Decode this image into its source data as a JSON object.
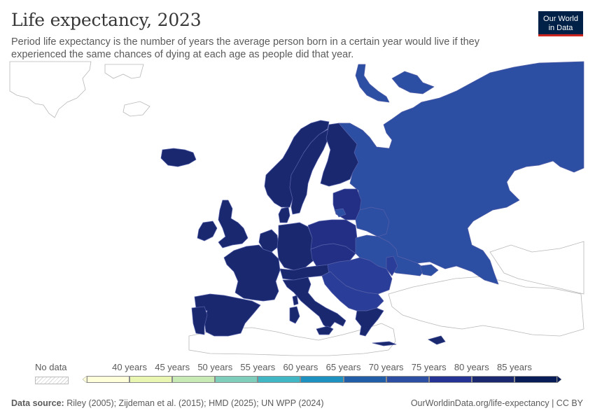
{
  "header": {
    "title": "Life expectancy, 2023",
    "subtitle": "Period life expectancy is the number of years the average person born in a certain year would live if they experienced the same chances of dying at each age as people did that year.",
    "logo_line1": "Our World",
    "logo_line2": "in Data"
  },
  "map": {
    "region": "Europe",
    "year": "2023",
    "metric": "Period life expectancy",
    "colors": {
      "very_high": "#1a2870",
      "high": "#222f85",
      "mid_high": "#2a3d98",
      "mid": "#2c4ea3",
      "no_data_stroke": "#b8b8b8",
      "border": "#3b4a8a"
    },
    "regions": [
      {
        "name": "Russia",
        "bin": "70–75 years",
        "color": "#2c4ea3"
      },
      {
        "name": "Norway",
        "bin": "80–85 years",
        "color": "#1a2870"
      },
      {
        "name": "Sweden",
        "bin": "80–85 years",
        "color": "#1a2870"
      },
      {
        "name": "Finland",
        "bin": "80–85 years",
        "color": "#1a2870"
      },
      {
        "name": "Iceland",
        "bin": "80–85 years",
        "color": "#1a2870"
      },
      {
        "name": "United Kingdom",
        "bin": "80–85 years",
        "color": "#1a2870"
      },
      {
        "name": "Ireland",
        "bin": "80–85 years",
        "color": "#1a2870"
      },
      {
        "name": "France",
        "bin": "80–85 years",
        "color": "#1a2870"
      },
      {
        "name": "Spain",
        "bin": "80–85 years",
        "color": "#1a2870"
      },
      {
        "name": "Portugal",
        "bin": "80–85 years",
        "color": "#1a2870"
      },
      {
        "name": "Germany",
        "bin": "80–85 years",
        "color": "#1a2870"
      },
      {
        "name": "Italy",
        "bin": "80–85 years",
        "color": "#1a2870"
      },
      {
        "name": "Poland",
        "bin": "75–80 years",
        "color": "#222f85"
      },
      {
        "name": "Ukraine",
        "bin": "70–75 years",
        "color": "#2c4ea3"
      },
      {
        "name": "Belarus",
        "bin": "70–75 years",
        "color": "#2c4ea3"
      },
      {
        "name": "Romania",
        "bin": "75–80 years",
        "color": "#2a3d98"
      },
      {
        "name": "Greece",
        "bin": "80–85 years",
        "color": "#1a2870"
      }
    ]
  },
  "legend": {
    "no_data_label": "No data",
    "bins": [
      {
        "label": "40 years",
        "color": "#ffffd9"
      },
      {
        "label": "45 years",
        "color": "#e8f6b1"
      },
      {
        "label": "50 years",
        "color": "#c7e9b4"
      },
      {
        "label": "55 years",
        "color": "#7fcdbb"
      },
      {
        "label": "60 years",
        "color": "#41b6c4"
      },
      {
        "label": "65 years",
        "color": "#1d91c0"
      },
      {
        "label": "70 years",
        "color": "#225ea8"
      },
      {
        "label": "75 years",
        "color": "#2c4ea3"
      },
      {
        "label": "80 years",
        "color": "#253494"
      },
      {
        "label": "85 years",
        "color": "#1a2870"
      }
    ],
    "last_color": "#081d58"
  },
  "footer": {
    "source_label": "Data source:",
    "source_text": "Riley (2005); Zijdeman et al. (2015); HMD (2025); UN WPP (2024)",
    "url_text": "OurWorldinData.org/life-expectancy | CC BY"
  }
}
